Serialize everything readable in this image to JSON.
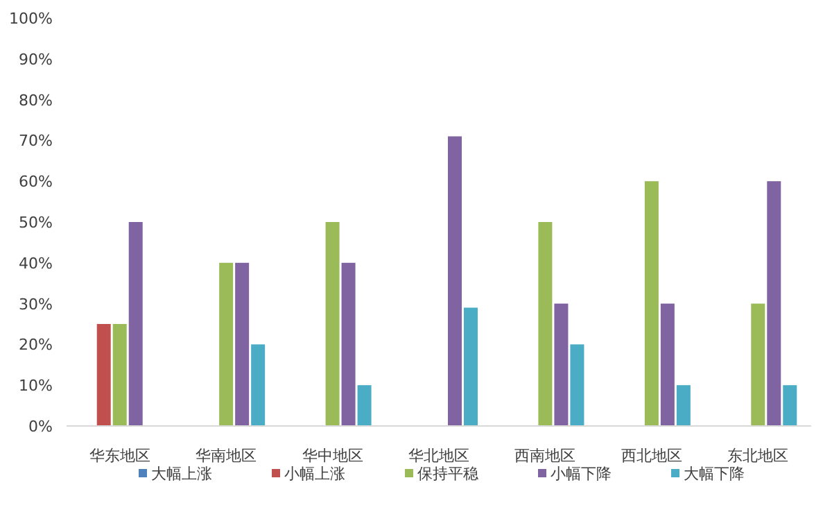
{
  "chart_data": {
    "type": "bar",
    "categories": [
      "华东地区",
      "华南地区",
      "华中地区",
      "华北地区",
      "西南地区",
      "西北地区",
      "东北地区"
    ],
    "series": [
      {
        "name": "大幅上涨",
        "color": "#4f81bd",
        "values": [
          0,
          0,
          0,
          0,
          0,
          0,
          0
        ]
      },
      {
        "name": "小幅上涨",
        "color": "#c0504d",
        "values": [
          25,
          0,
          0,
          0,
          0,
          0,
          0
        ]
      },
      {
        "name": "保持平稳",
        "color": "#9bbb59",
        "values": [
          25,
          40,
          50,
          0,
          50,
          60,
          30
        ]
      },
      {
        "name": "小幅下降",
        "color": "#8064a2",
        "values": [
          50,
          40,
          40,
          71,
          30,
          30,
          60
        ]
      },
      {
        "name": "大幅下降",
        "color": "#4bacc6",
        "values": [
          0,
          20,
          10,
          29,
          20,
          10,
          10
        ]
      }
    ],
    "ylim": [
      0,
      100
    ],
    "yticks": [
      {
        "value": 0,
        "label": "0%"
      },
      {
        "value": 10,
        "label": "10%"
      },
      {
        "value": 20,
        "label": "20%"
      },
      {
        "value": 30,
        "label": "30%"
      },
      {
        "value": 40,
        "label": "40%"
      },
      {
        "value": 50,
        "label": "50%"
      },
      {
        "value": 60,
        "label": "60%"
      },
      {
        "value": 70,
        "label": "70%"
      },
      {
        "value": 80,
        "label": "80%"
      },
      {
        "value": 90,
        "label": "90%"
      },
      {
        "value": 100,
        "label": "100%"
      }
    ],
    "grid": false,
    "legend": "bottom"
  }
}
